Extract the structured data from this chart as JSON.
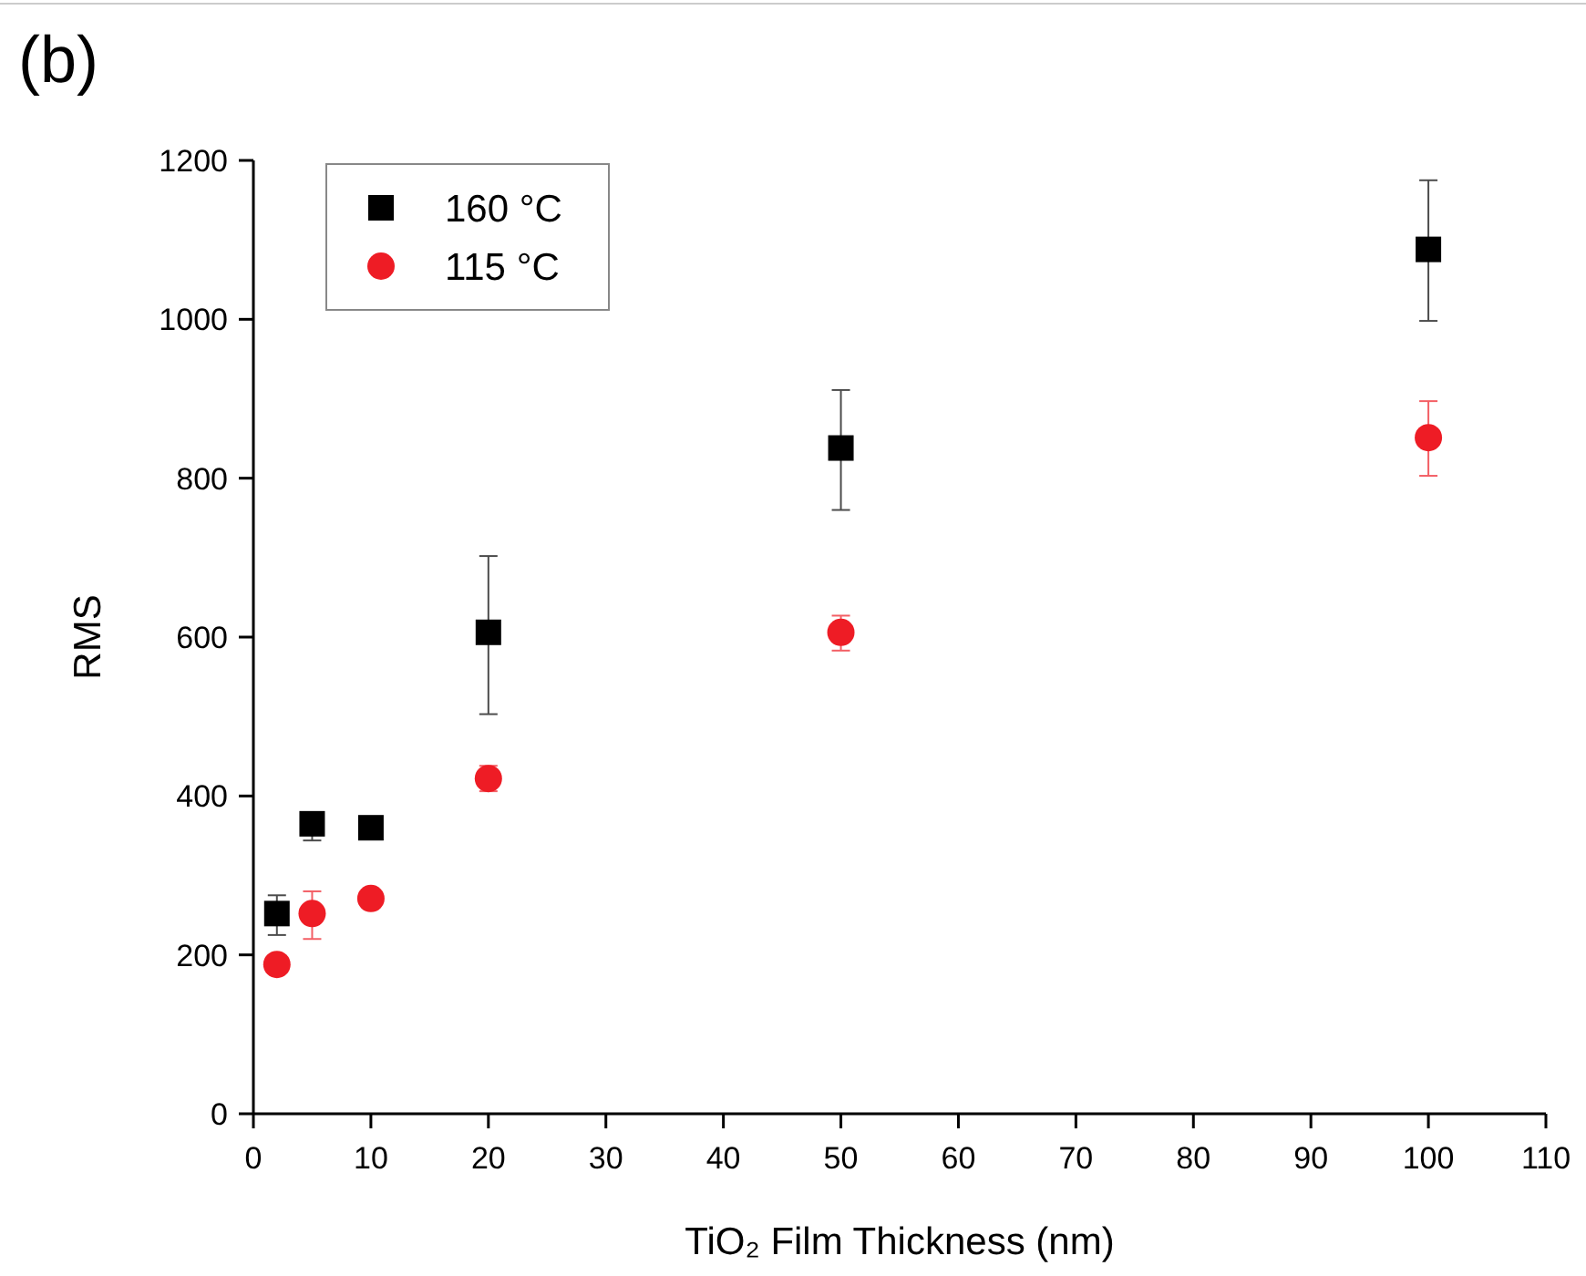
{
  "chart_data": {
    "type": "scatter",
    "title": "(b)",
    "xlabel": "TiO₂ Film Thickness (nm)",
    "ylabel": "RMS",
    "xlim": [
      0,
      110
    ],
    "xticks": [
      0,
      10,
      20,
      30,
      40,
      50,
      60,
      70,
      80,
      90,
      100,
      110
    ],
    "ylim": [
      0,
      1200
    ],
    "yticks": [
      0,
      200,
      400,
      600,
      800,
      1000,
      1200
    ],
    "x": [
      2,
      5,
      10,
      20,
      50,
      100
    ],
    "series": [
      {
        "name": "160 °C",
        "color": "#000000",
        "marker": "square",
        "values": [
          252,
          365,
          360,
          606,
          838,
          1088
        ],
        "errors": [
          [
            225,
            275
          ],
          [
            344,
            378
          ],
          null,
          [
            503,
            702
          ],
          [
            760,
            911
          ],
          [
            998,
            1175
          ]
        ]
      },
      {
        "name": "115 °C",
        "color": "#ee1c25",
        "marker": "circle",
        "values": [
          188,
          252,
          271,
          422,
          606,
          851
        ],
        "errors": [
          null,
          [
            220,
            280
          ],
          null,
          [
            406,
            438
          ],
          [
            583,
            627
          ],
          [
            803,
            897
          ]
        ]
      }
    ],
    "legend": "top left",
    "grid": false
  }
}
